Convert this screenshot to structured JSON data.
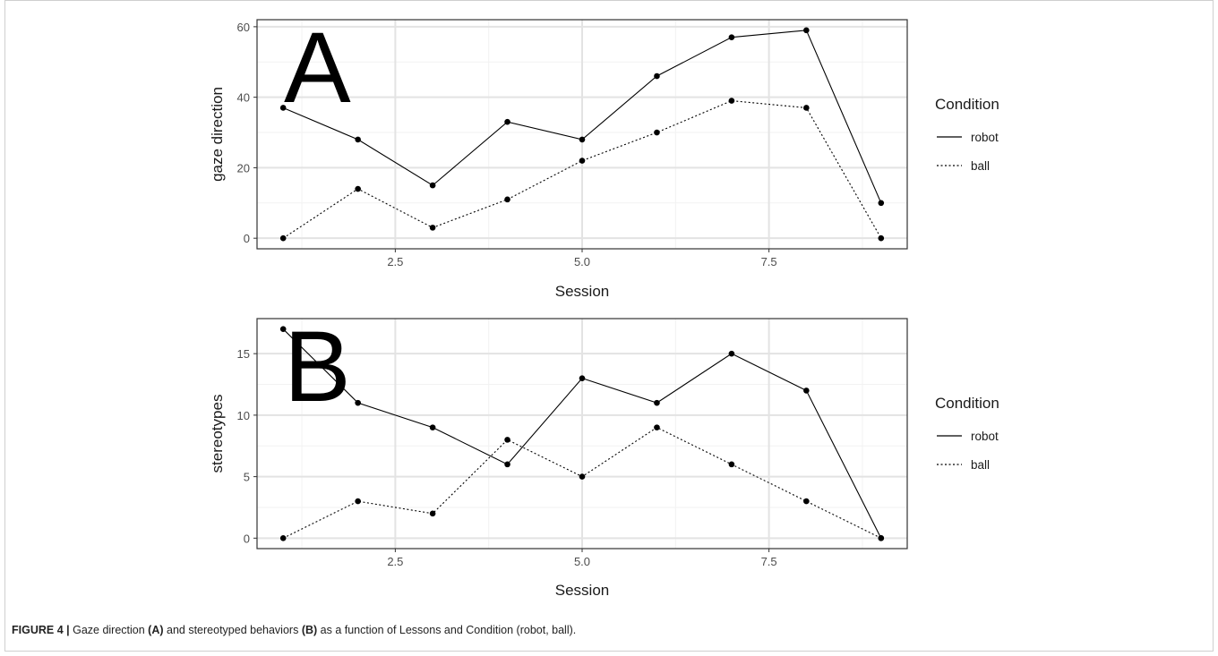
{
  "caption": {
    "label": "FIGURE 4 |",
    "p1": " Gaze direction ",
    "b1": "(A)",
    "p2": " and stereotyped behaviors ",
    "b2": "(B)",
    "p3": " as a function of Lessons and Condition (robot, ball)."
  },
  "chart_data": [
    {
      "type": "line",
      "panel_label": "A",
      "xlabel": "Session",
      "ylabel": "gaze direction",
      "xlim": [
        0.65,
        9.35
      ],
      "ylim": [
        -3,
        62
      ],
      "xticks": [
        2.5,
        5.0,
        7.5
      ],
      "xtick_labels": [
        "2.5",
        "5.0",
        "7.5"
      ],
      "yticks": [
        0,
        20,
        40,
        60
      ],
      "ytick_labels": [
        "0",
        "20",
        "40",
        "60"
      ],
      "grid": true,
      "legend": {
        "title": "Condition",
        "placement": "right"
      },
      "x": [
        1,
        2,
        3,
        4,
        5,
        6,
        7,
        8,
        9
      ],
      "series": [
        {
          "name": "robot",
          "linestyle": "solid",
          "values": [
            37,
            28,
            15,
            33,
            28,
            46,
            57,
            59,
            10
          ]
        },
        {
          "name": "ball",
          "linestyle": "dotted",
          "values": [
            0,
            14,
            3,
            11,
            22,
            30,
            39,
            37,
            0
          ]
        }
      ]
    },
    {
      "type": "line",
      "panel_label": "B",
      "xlabel": "Session",
      "ylabel": "stereotypes",
      "xlim": [
        0.65,
        9.35
      ],
      "ylim": [
        -0.85,
        17.85
      ],
      "xticks": [
        2.5,
        5.0,
        7.5
      ],
      "xtick_labels": [
        "2.5",
        "5.0",
        "7.5"
      ],
      "yticks": [
        0,
        5,
        10,
        15
      ],
      "ytick_labels": [
        "0",
        "5",
        "10",
        "15"
      ],
      "grid": true,
      "legend": {
        "title": "Condition",
        "placement": "right"
      },
      "x": [
        1,
        2,
        3,
        4,
        5,
        6,
        7,
        8,
        9
      ],
      "series": [
        {
          "name": "robot",
          "linestyle": "solid",
          "values": [
            17,
            11,
            9,
            6,
            13,
            11,
            15,
            12,
            0
          ]
        },
        {
          "name": "ball",
          "linestyle": "dotted",
          "values": [
            0,
            3,
            2,
            8,
            5,
            9,
            6,
            3,
            0
          ]
        }
      ]
    }
  ]
}
